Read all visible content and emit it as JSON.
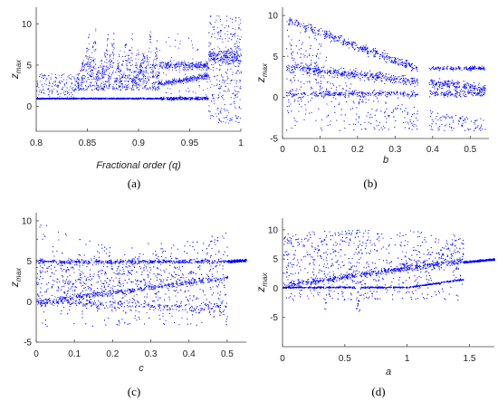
{
  "chart_data": [
    {
      "panel": "(a)",
      "type": "scatter",
      "xlabel": "Fractional order (q)",
      "ylabel": "z_max",
      "xlim": [
        0.8,
        1.0
      ],
      "ylim": [
        -3,
        12
      ],
      "xticks": [
        0.8,
        0.85,
        0.9,
        0.95,
        1
      ],
      "xtick_labels": [
        "0.8",
        "0.85",
        "0.9",
        "0.95",
        "1"
      ],
      "yticks": [
        0,
        5,
        10
      ],
      "ytick_labels": [
        "0",
        "5",
        "10"
      ],
      "grid": false,
      "color": "#0000ff",
      "regime": [
        {
          "x_from": 0.8,
          "x_to": 0.84,
          "behavior": "periodic",
          "levels": [
            1
          ]
        },
        {
          "x_from": 0.84,
          "x_to": 0.92,
          "behavior": "windows",
          "levels": [
            1,
            4.5,
            8
          ]
        },
        {
          "x_from": 0.92,
          "x_to": 0.968,
          "behavior": "periodic",
          "levels": [
            1,
            3,
            5
          ]
        },
        {
          "x_from": 0.968,
          "x_to": 1.0,
          "behavior": "chaotic",
          "range": [
            -2,
            11
          ]
        }
      ]
    },
    {
      "panel": "(b)",
      "type": "scatter",
      "xlabel": "b",
      "ylabel": "z_max",
      "xlim": [
        0,
        0.55
      ],
      "ylim": [
        -5,
        11
      ],
      "xticks": [
        0,
        0.1,
        0.2,
        0.3,
        0.4,
        0.5
      ],
      "xtick_labels": [
        "0",
        "0.1",
        "0.2",
        "0.3",
        "0.4",
        "0.5"
      ],
      "yticks": [
        -5,
        0,
        5,
        10
      ],
      "ytick_labels": [
        "-5",
        "0",
        "5",
        "10"
      ],
      "grid": false,
      "color": "#0000ff",
      "branches": [
        {
          "x_from": 0.01,
          "x_to": 0.36,
          "y_from": 9.5,
          "y_to": 3.5
        },
        {
          "x_from": 0.02,
          "x_to": 0.52,
          "y_from": 4.0,
          "y_to": 1.0
        },
        {
          "x_from": 0.13,
          "x_to": 0.52,
          "y_from": 0.5,
          "y_to": 0.5
        }
      ]
    },
    {
      "panel": "(c)",
      "type": "scatter",
      "xlabel": "c",
      "ylabel": "z_max",
      "xlim": [
        0,
        0.55
      ],
      "ylim": [
        -5,
        11
      ],
      "xticks": [
        0,
        0.1,
        0.2,
        0.3,
        0.4,
        0.5
      ],
      "xtick_labels": [
        "0",
        "0.1",
        "0.2",
        "0.3",
        "0.4",
        "0.5"
      ],
      "yticks": [
        -5,
        0,
        5,
        10
      ],
      "ytick_labels": [
        "-5",
        "0",
        "5",
        "10"
      ],
      "grid": false,
      "color": "#0000ff",
      "branches": [
        {
          "x_from": 0.0,
          "x_to": 0.55,
          "y_from": 5.0,
          "y_to": 5.0
        },
        {
          "x_from": 0.0,
          "x_to": 0.5,
          "y_from": 0.0,
          "y_to": 3.0
        }
      ]
    },
    {
      "panel": "(d)",
      "type": "scatter",
      "xlabel": "a",
      "ylabel": "z_max",
      "xlim": [
        0,
        1.7
      ],
      "ylim": [
        -10,
        12
      ],
      "xticks": [
        0,
        0.5,
        1,
        1.5
      ],
      "xtick_labels": [
        "0",
        "0.5",
        "1",
        "1.5"
      ],
      "yticks": [
        -5,
        0,
        5,
        10
      ],
      "ytick_labels": [
        "-5",
        "0",
        "5",
        "10"
      ],
      "grid": false,
      "color": "#0000ff",
      "branches": [
        {
          "x_from": 0.0,
          "x_to": 1.7,
          "y_from": 0.2,
          "y_to": 5.0
        },
        {
          "x_from": 0.8,
          "x_to": 1.45,
          "y_from": 3.0,
          "y_to": 10.0
        }
      ]
    }
  ],
  "captions": {
    "a": "(a)",
    "b": "(b)",
    "c": "(c)",
    "d": "(d)"
  }
}
